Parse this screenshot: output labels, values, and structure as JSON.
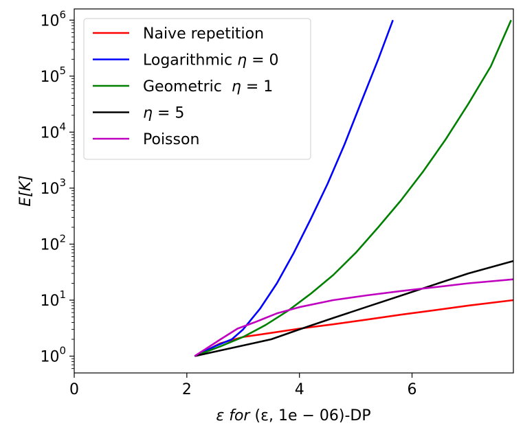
{
  "chart_data": {
    "type": "line",
    "title": "",
    "xlabel_prefix": "ε for ",
    "xlabel_params": "(ε, 1e − 06)",
    "xlabel_suffix": "-DP",
    "ylabel_main": "E",
    "ylabel_arg": "[K]",
    "yscale": "log",
    "xlim": [
      0,
      7.8
    ],
    "ylim_log10": [
      -0.3,
      6.2
    ],
    "grid": false,
    "legend_position": "top-left",
    "xticks": [
      {
        "value": 0,
        "label": "0"
      },
      {
        "value": 2,
        "label": "2"
      },
      {
        "value": 4,
        "label": "4"
      },
      {
        "value": 6,
        "label": "6"
      }
    ],
    "yticks": [
      {
        "exp": 0,
        "base": "10",
        "sup": "0"
      },
      {
        "exp": 1,
        "base": "10",
        "sup": "1"
      },
      {
        "exp": 2,
        "base": "10",
        "sup": "2"
      },
      {
        "exp": 3,
        "base": "10",
        "sup": "3"
      },
      {
        "exp": 4,
        "base": "10",
        "sup": "4"
      },
      {
        "exp": 5,
        "base": "10",
        "sup": "5"
      },
      {
        "exp": 6,
        "base": "10",
        "sup": "6"
      }
    ],
    "series": [
      {
        "name": "Naive repetition",
        "color": "#ff0000",
        "x": [
          2.14,
          2.6,
          3.0,
          3.5,
          4.0,
          4.6,
          5.2,
          5.8,
          6.4,
          7.0,
          7.8
        ],
        "y": [
          1.0,
          1.7,
          2.2,
          2.6,
          3.1,
          3.7,
          4.5,
          5.5,
          6.6,
          8.0,
          10.0
        ]
      },
      {
        "name": "Logarithmic η = 0",
        "color": "#0000ff",
        "x": [
          2.14,
          2.5,
          2.8,
          3.0,
          3.3,
          3.6,
          3.9,
          4.2,
          4.5,
          4.8,
          5.1,
          5.4,
          5.66
        ],
        "y": [
          1.0,
          1.5,
          2.0,
          3.0,
          7.0,
          20,
          70,
          280,
          1200,
          6000,
          35000,
          200000,
          1000000
        ]
      },
      {
        "name": "Geometric η = 1",
        "color": "#008000",
        "x": [
          2.14,
          2.6,
          3.0,
          3.4,
          3.8,
          4.2,
          4.6,
          5.0,
          5.4,
          5.8,
          6.2,
          6.6,
          7.0,
          7.4,
          7.76
        ],
        "y": [
          1.0,
          1.5,
          2.2,
          3.6,
          6.5,
          13,
          28,
          70,
          200,
          600,
          2000,
          7500,
          32000,
          150000,
          1000000
        ]
      },
      {
        "name": "η = 5",
        "color": "#000000",
        "x": [
          2.14,
          2.8,
          3.5,
          4.0,
          4.6,
          5.2,
          5.8,
          6.4,
          7.0,
          7.8
        ],
        "y": [
          1.0,
          1.4,
          2.0,
          3.0,
          4.8,
          7.6,
          12,
          19,
          30,
          50
        ]
      },
      {
        "name": "Poisson",
        "color": "#bf00bf",
        "x": [
          2.14,
          2.6,
          2.9,
          3.2,
          3.6,
          4.0,
          4.6,
          5.2,
          5.8,
          6.4,
          7.0,
          7.8
        ],
        "y": [
          1.0,
          2.0,
          3.1,
          4.0,
          5.8,
          7.5,
          10.0,
          12.2,
          14.5,
          17.0,
          20.0,
          23.5
        ]
      }
    ],
    "legend": [
      {
        "label_plain": "Naive repetition",
        "label_prefix": "",
        "label_math": "",
        "label_suffix": "",
        "color": "#ff0000"
      },
      {
        "label_plain": "",
        "label_prefix": "Logarithmic ",
        "label_math": "η",
        "label_suffix": " = 0",
        "color": "#0000ff"
      },
      {
        "label_plain": "",
        "label_prefix": "Geometric  ",
        "label_math": "η",
        "label_suffix": " = 1",
        "color": "#008000"
      },
      {
        "label_plain": "",
        "label_prefix": "",
        "label_math": "η",
        "label_suffix": " = 5",
        "color": "#000000"
      },
      {
        "label_plain": "Poisson",
        "label_prefix": "",
        "label_math": "",
        "label_suffix": "",
        "color": "#bf00bf"
      }
    ]
  }
}
